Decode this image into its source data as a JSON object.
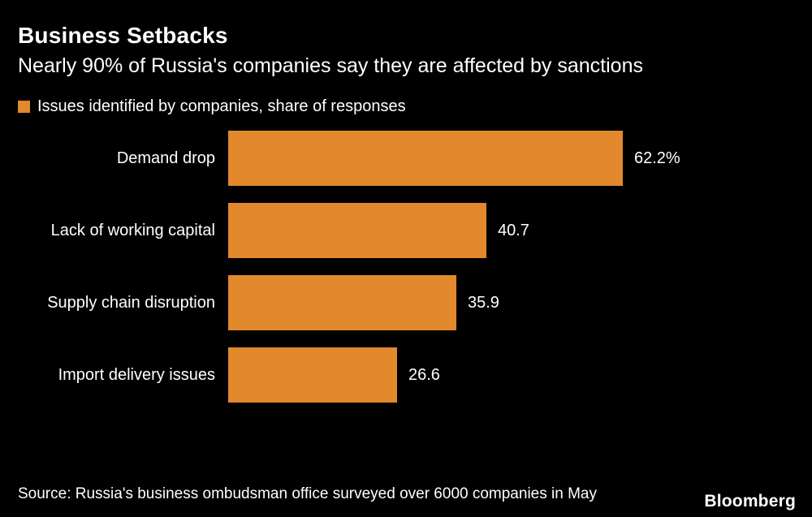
{
  "title": "Business Setbacks",
  "subtitle": "Nearly 90% of Russia's companies say they are affected by sanctions",
  "legend": {
    "label": "Issues identified by companies, share of responses"
  },
  "colors": {
    "background": "#000000",
    "bar": "#E2882D",
    "text": "#ffffff"
  },
  "chart_data": {
    "type": "bar",
    "orientation": "horizontal",
    "title": "Issues identified by companies, share of responses",
    "categories": [
      "Demand drop",
      "Lack of working capital",
      "Supply chain disruption",
      "Import delivery issues"
    ],
    "values": [
      62.2,
      40.7,
      35.9,
      26.6
    ],
    "value_labels": [
      "62.2%",
      "40.7",
      "35.9",
      "26.6"
    ],
    "unit": "share of responses (%)",
    "xlim": [
      0,
      62.2
    ],
    "grid": false,
    "legend_position": "top-left"
  },
  "source": "Source: Russia's business ombudsman office surveyed over 6000 companies in May",
  "brand": "Bloomberg"
}
